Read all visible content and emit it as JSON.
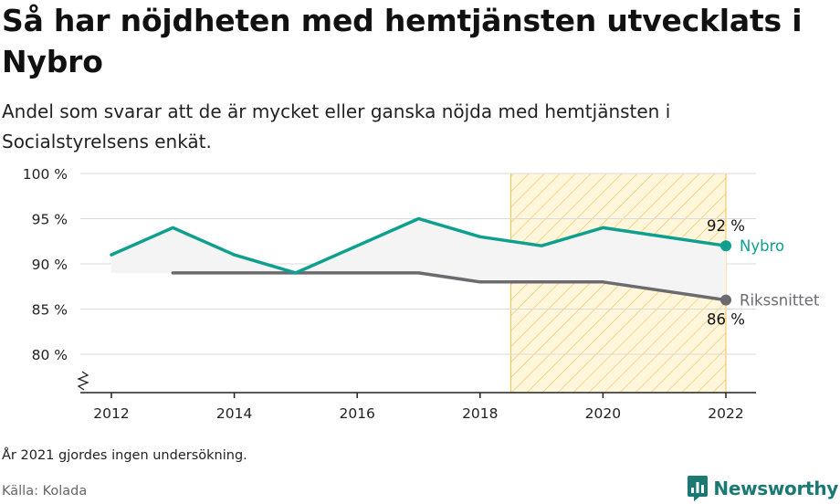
{
  "header": {
    "title": "Så har nöjdheten med hemtjänsten utvecklats i Nybro",
    "subtitle": "Andel som svarar att de är mycket eller ganska nöjda med hemtjänsten i Socialstyrelsens enkät."
  },
  "footer": {
    "note": "År 2021 gjordes ingen undersökning.",
    "source": "Källa: Kolada",
    "brand": "Newsworthy"
  },
  "colors": {
    "nybro": "#0e9f8e",
    "riket": "#6b6b6f",
    "highlight": "#f2c14e",
    "fill": "#f4f4f4"
  },
  "chart_data": {
    "type": "line",
    "ytick_suffix": " %",
    "y_ticks": [
      80,
      85,
      90,
      95,
      100
    ],
    "x_ticks": [
      2012,
      2014,
      2016,
      2018,
      2020,
      2022
    ],
    "xlim": [
      2011.5,
      2022.5
    ],
    "ylim": [
      76,
      100
    ],
    "y_axis_break": true,
    "grid": "horizontal",
    "highlight_range": [
      2018.5,
      2022
    ],
    "series": [
      {
        "name": "Nybro",
        "color": "#0e9f8e",
        "x": [
          2012,
          2013,
          2014,
          2015,
          2016,
          2017,
          2018,
          2019,
          2020,
          2022
        ],
        "values": [
          91,
          94,
          91,
          89,
          92,
          95,
          93,
          92,
          94,
          92
        ],
        "end_label": "92 %"
      },
      {
        "name": "Rikssnittet",
        "color": "#6b6b6f",
        "x": [
          2013,
          2014,
          2015,
          2016,
          2017,
          2018,
          2019,
          2020,
          2022
        ],
        "values": [
          89,
          89,
          89,
          89,
          89,
          88,
          88,
          88,
          86
        ],
        "end_label": "86 %"
      }
    ]
  }
}
